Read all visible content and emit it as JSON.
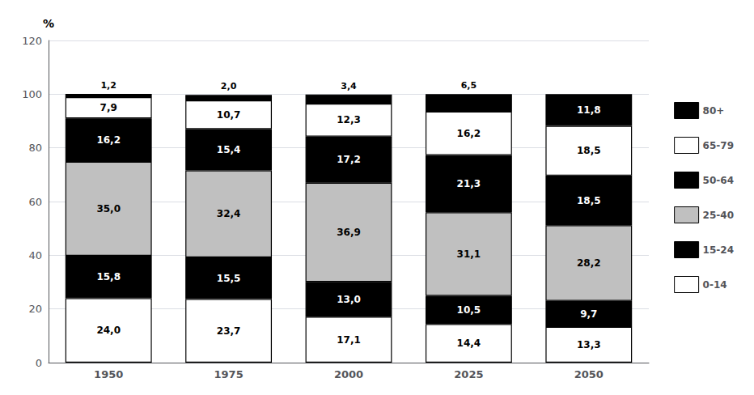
{
  "chart_data": {
    "type": "bar",
    "stacked": true,
    "categories": [
      "1950",
      "1975",
      "2000",
      "2025",
      "2050"
    ],
    "ylabel": "%",
    "series": [
      {
        "name": "0-14",
        "color": "#ffffff",
        "values": [
          24.0,
          23.7,
          17.1,
          14.4,
          13.3
        ],
        "value_labels": [
          "24,0",
          "23,7",
          "17,1",
          "14,4",
          "13,3"
        ]
      },
      {
        "name": "15-24",
        "color": "#000000",
        "values": [
          15.8,
          15.5,
          13.0,
          10.5,
          9.7
        ],
        "value_labels": [
          "15,8",
          "15,5",
          "13,0",
          "10,5",
          "9,7"
        ]
      },
      {
        "name": "25-40",
        "color": "#c0c0c0",
        "values": [
          35.0,
          32.4,
          36.9,
          31.1,
          28.2
        ],
        "value_labels": [
          "35,0",
          "32,4",
          "36,9",
          "31,1",
          "28,2"
        ]
      },
      {
        "name": "50-64",
        "color": "#000000",
        "values": [
          16.2,
          15.4,
          17.2,
          21.3,
          18.5
        ],
        "value_labels": [
          "16,2",
          "15,4",
          "17,2",
          "21,3",
          "18,5"
        ]
      },
      {
        "name": "65-79",
        "color": "#ffffff",
        "values": [
          7.9,
          10.7,
          12.3,
          16.2,
          18.5
        ],
        "value_labels": [
          "7,9",
          "10,7",
          "12,3",
          "16,2",
          "18,5"
        ]
      },
      {
        "name": "80+",
        "color": "#000000",
        "values": [
          1.2,
          2.0,
          3.4,
          6.5,
          11.8
        ],
        "value_labels": [
          "1,2",
          "2,0",
          "3,4",
          "6,5",
          "11,8"
        ]
      }
    ],
    "data_labels": true,
    "ylim": [
      0,
      120
    ],
    "yticks": [
      0,
      20,
      40,
      60,
      80,
      100,
      120
    ],
    "grid": true,
    "legend": "right"
  }
}
